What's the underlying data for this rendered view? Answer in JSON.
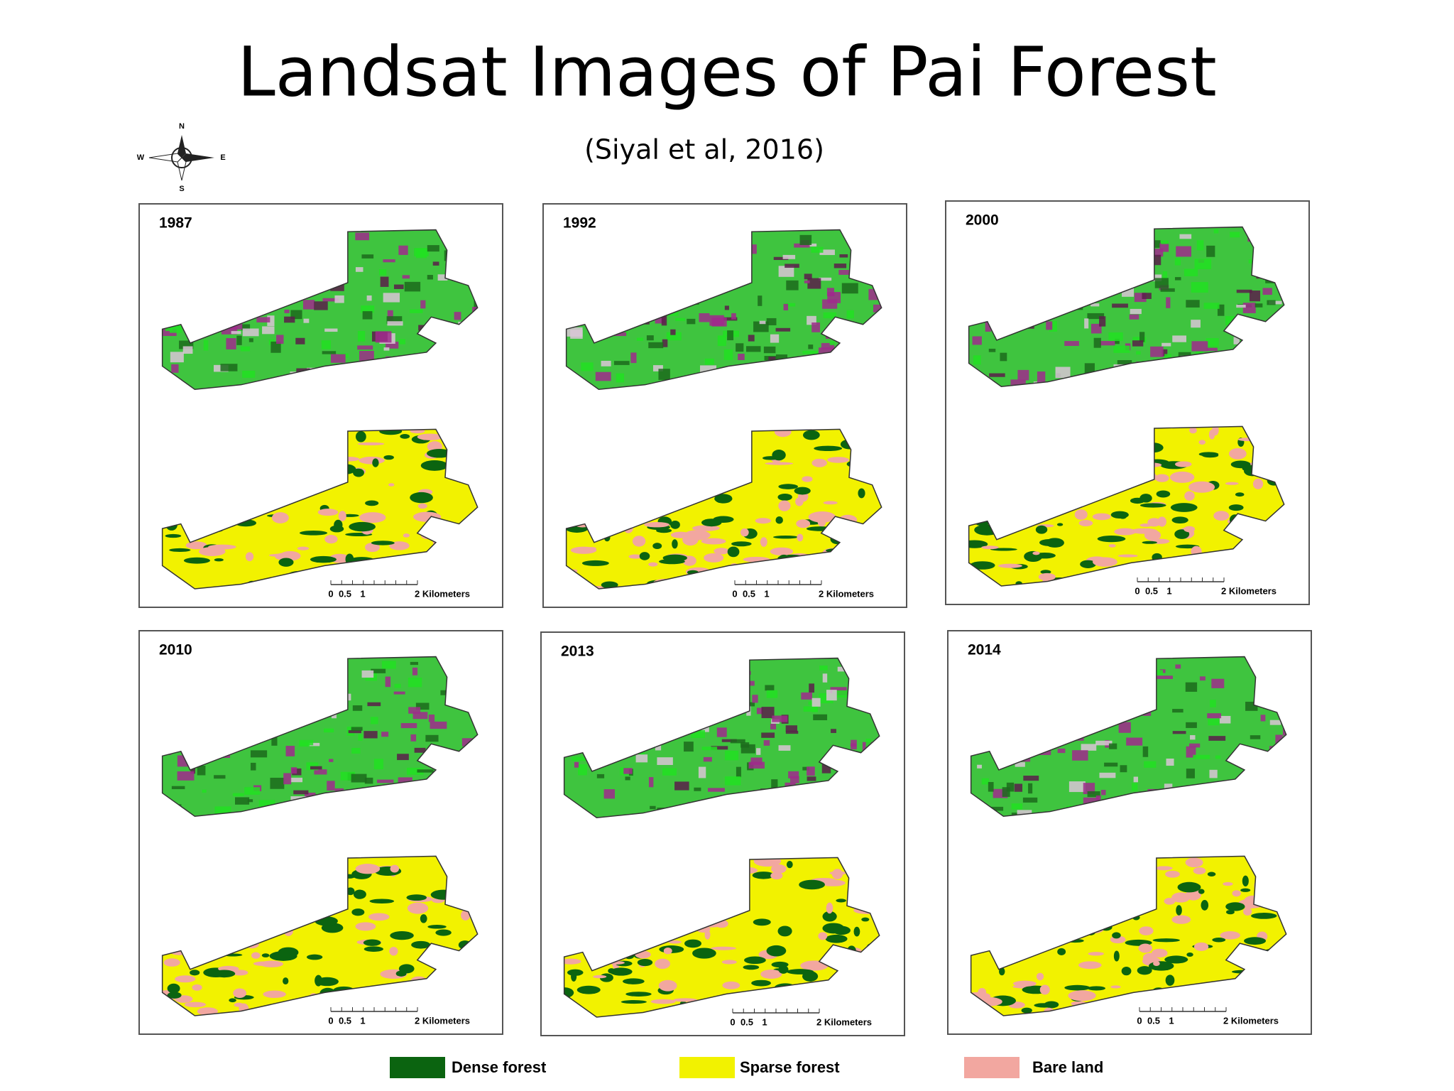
{
  "header": {
    "title": "Landsat Images of Pai Forest",
    "subtitle": "(Siyal et al, 2016)"
  },
  "compass": {
    "north": "N",
    "east": "E",
    "south": "S",
    "west": "W"
  },
  "panels": [
    {
      "year": "1987",
      "scale_labels": [
        "0",
        "0.5",
        "1",
        "2 Kilometers"
      ]
    },
    {
      "year": "1992",
      "scale_labels": [
        "0",
        "0.5",
        "1",
        "2 Kilometers"
      ]
    },
    {
      "year": "2000",
      "scale_labels": [
        "0",
        "0.5",
        "1",
        "2 Kilometers"
      ]
    },
    {
      "year": "2010",
      "scale_labels": [
        "0",
        "0.5",
        "1",
        "2 Kilometers"
      ]
    },
    {
      "year": "2013",
      "scale_labels": [
        "0",
        "0.5",
        "1",
        "2 Kilometers"
      ]
    },
    {
      "year": "2014",
      "scale_labels": [
        "0",
        "0.5",
        "1",
        "2 Kilometers"
      ]
    }
  ],
  "legend": [
    {
      "label": "Dense forest",
      "color": "#0b6410"
    },
    {
      "label": "Sparse forest",
      "color": "#f2f200"
    },
    {
      "label": "Bare land",
      "color": "#f2a7a0"
    }
  ]
}
